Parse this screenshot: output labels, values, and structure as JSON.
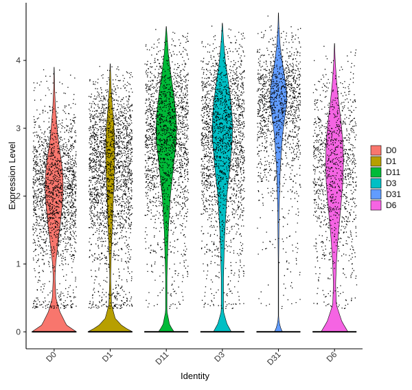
{
  "chart_data": {
    "type": "violin",
    "title": "",
    "xlabel": "Identity",
    "ylabel": "Expression Level",
    "ylim": [
      -0.25,
      4.85
    ],
    "yticks": [
      0,
      1,
      2,
      3,
      4
    ],
    "categories": [
      "D0",
      "D1",
      "D11",
      "D3",
      "D31",
      "D6"
    ],
    "colors": [
      "#F8766D",
      "#B79F00",
      "#00BA38",
      "#00BFC4",
      "#619CFF",
      "#F564E3"
    ],
    "legend": {
      "position": "right",
      "entries": [
        "D0",
        "D1",
        "D11",
        "D3",
        "D31",
        "D6"
      ]
    },
    "grid": false,
    "jitter_points": "black",
    "series": [
      {
        "category": "D0",
        "max": 3.9,
        "point_density": 0.55,
        "density": [
          [
            0,
            1.0
          ],
          [
            0.1,
            0.55
          ],
          [
            0.3,
            0.25
          ],
          [
            0.5,
            0.08
          ],
          [
            0.8,
            0.04
          ],
          [
            1.0,
            0.07
          ],
          [
            1.3,
            0.17
          ],
          [
            1.6,
            0.28
          ],
          [
            1.9,
            0.37
          ],
          [
            2.1,
            0.4
          ],
          [
            2.3,
            0.39
          ],
          [
            2.5,
            0.33
          ],
          [
            2.7,
            0.24
          ],
          [
            2.9,
            0.16
          ],
          [
            3.1,
            0.11
          ],
          [
            3.3,
            0.06
          ],
          [
            3.6,
            0.02
          ],
          [
            3.9,
            0.005
          ]
        ]
      },
      {
        "category": "D1",
        "max": 3.95,
        "point_density": 1.0,
        "density": [
          [
            0,
            1.0
          ],
          [
            0.08,
            0.55
          ],
          [
            0.2,
            0.22
          ],
          [
            0.4,
            0.06
          ],
          [
            0.8,
            0.02
          ],
          [
            1.2,
            0.05
          ],
          [
            1.6,
            0.1
          ],
          [
            2.0,
            0.14
          ],
          [
            2.3,
            0.18
          ],
          [
            2.6,
            0.2
          ],
          [
            2.9,
            0.19
          ],
          [
            3.1,
            0.15
          ],
          [
            3.3,
            0.1
          ],
          [
            3.6,
            0.04
          ],
          [
            3.95,
            0.005
          ]
        ]
      },
      {
        "category": "D11",
        "max": 4.5,
        "point_density": 0.85,
        "density": [
          [
            0,
            0.35
          ],
          [
            0.1,
            0.15
          ],
          [
            0.3,
            0.03
          ],
          [
            0.8,
            0.03
          ],
          [
            1.5,
            0.09
          ],
          [
            2.0,
            0.18
          ],
          [
            2.5,
            0.34
          ],
          [
            2.8,
            0.44
          ],
          [
            3.0,
            0.46
          ],
          [
            3.2,
            0.43
          ],
          [
            3.5,
            0.33
          ],
          [
            3.8,
            0.2
          ],
          [
            4.1,
            0.09
          ],
          [
            4.5,
            0.005
          ]
        ]
      },
      {
        "category": "D3",
        "max": 4.55,
        "point_density": 0.85,
        "density": [
          [
            0,
            0.4
          ],
          [
            0.12,
            0.2
          ],
          [
            0.3,
            0.05
          ],
          [
            0.8,
            0.05
          ],
          [
            1.4,
            0.1
          ],
          [
            2.0,
            0.2
          ],
          [
            2.5,
            0.36
          ],
          [
            2.9,
            0.45
          ],
          [
            3.1,
            0.45
          ],
          [
            3.4,
            0.38
          ],
          [
            3.7,
            0.26
          ],
          [
            4.0,
            0.13
          ],
          [
            4.3,
            0.05
          ],
          [
            4.55,
            0.005
          ]
        ]
      },
      {
        "category": "D31",
        "max": 4.7,
        "point_density": 1.15,
        "density": [
          [
            0,
            0.18
          ],
          [
            0.08,
            0.07
          ],
          [
            0.2,
            0.01
          ],
          [
            1.0,
            0.01
          ],
          [
            1.8,
            0.03
          ],
          [
            2.4,
            0.08
          ],
          [
            2.9,
            0.18
          ],
          [
            3.2,
            0.3
          ],
          [
            3.4,
            0.38
          ],
          [
            3.6,
            0.35
          ],
          [
            3.8,
            0.26
          ],
          [
            4.0,
            0.16
          ],
          [
            4.2,
            0.08
          ],
          [
            4.5,
            0.02
          ],
          [
            4.7,
            0.005
          ]
        ]
      },
      {
        "category": "D6",
        "max": 4.25,
        "point_density": 0.35,
        "density": [
          [
            0,
            0.6
          ],
          [
            0.15,
            0.33
          ],
          [
            0.4,
            0.08
          ],
          [
            0.7,
            0.05
          ],
          [
            1.0,
            0.08
          ],
          [
            1.4,
            0.16
          ],
          [
            1.8,
            0.27
          ],
          [
            2.2,
            0.37
          ],
          [
            2.5,
            0.4
          ],
          [
            2.8,
            0.37
          ],
          [
            3.1,
            0.29
          ],
          [
            3.4,
            0.18
          ],
          [
            3.7,
            0.09
          ],
          [
            4.0,
            0.03
          ],
          [
            4.25,
            0.005
          ]
        ]
      }
    ]
  }
}
